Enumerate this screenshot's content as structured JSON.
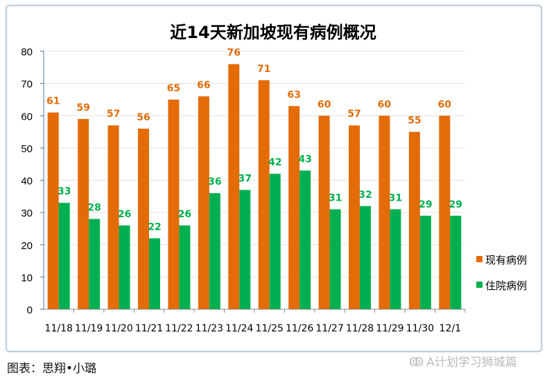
{
  "chart_data": {
    "type": "bar",
    "title": "近14天新加坡现有病例概况",
    "categories": [
      "11/18",
      "11/19",
      "11/20",
      "11/21",
      "11/22",
      "11/23",
      "11/24",
      "11/25",
      "11/26",
      "11/27",
      "11/28",
      "11/29",
      "11/30",
      "12/1"
    ],
    "series": [
      {
        "name": "现有病例",
        "color": "#E36C09",
        "values": [
          61,
          59,
          57,
          56,
          65,
          66,
          76,
          71,
          63,
          60,
          57,
          60,
          55,
          60
        ]
      },
      {
        "name": "住院病例",
        "color": "#00B050",
        "values": [
          33,
          28,
          26,
          22,
          26,
          36,
          37,
          42,
          43,
          31,
          32,
          31,
          29,
          29
        ]
      }
    ],
    "ylim": [
      0,
      80
    ],
    "yticks": [
      0,
      10,
      20,
      30,
      40,
      50,
      60,
      70,
      80
    ],
    "xlabel": "",
    "ylabel": "",
    "grid": true,
    "legend": "right",
    "data_labels": true
  },
  "caption": "图表：思翔•小璐",
  "watermark": "A计划学习狮城篇"
}
